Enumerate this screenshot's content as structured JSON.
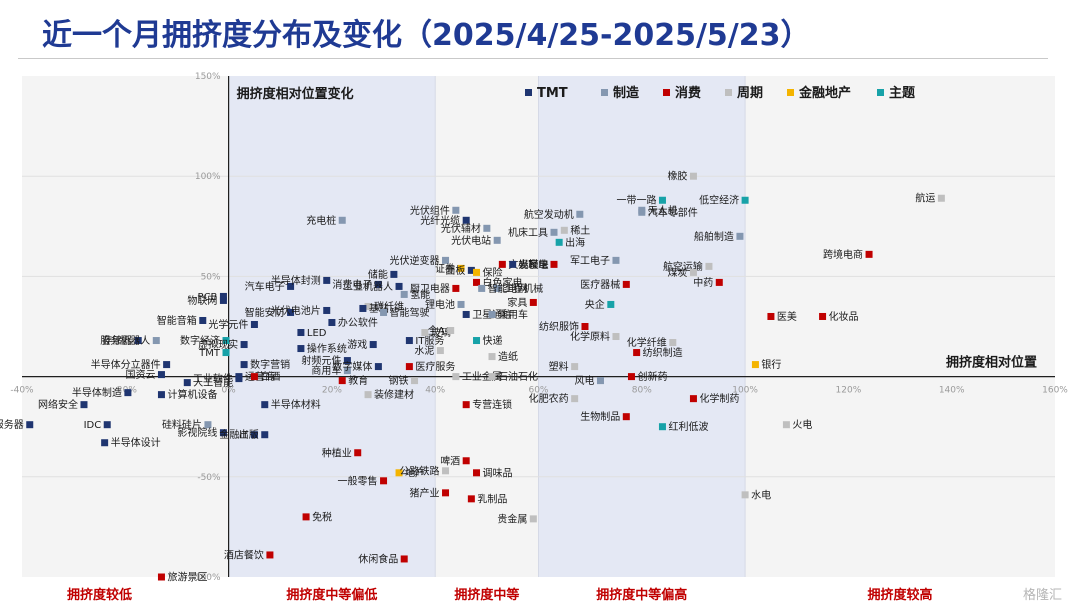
{
  "title": "近一个月拥挤度分布及变化（2025/4/25-2025/5/23）",
  "watermark": "格隆汇",
  "colors": {
    "TMT": "#1f3570",
    "制造": "#8497b0",
    "消费": "#c00000",
    "周期": "#bfbfbf",
    "金融地产": "#f4b400",
    "主题": "#17a2a8"
  },
  "chart_data": {
    "type": "scatter",
    "x_axis_label": "拥挤度相对位置",
    "y_axis_label": "拥挤度相对位置变化",
    "xlim": [
      -0.4,
      1.6
    ],
    "ylim": [
      -1.0,
      1.5
    ],
    "x_ticks": [
      "-40%",
      "-20%",
      "0%",
      "20%",
      "40%",
      "60%",
      "80%",
      "100%",
      "120%",
      "140%",
      "160%"
    ],
    "y_ticks": [
      "150%",
      "100%",
      "50%",
      "-50%",
      "-100%"
    ],
    "legend": [
      "TMT",
      "制造",
      "消费",
      "周期",
      "金融地产",
      "主题"
    ],
    "zones": [
      "拥挤度较低",
      "拥挤度中等偏低",
      "拥挤度中等",
      "拥挤度中等偏高",
      "拥挤度较高"
    ],
    "points": [
      {
        "label": "服务器",
        "x": -0.385,
        "y": -0.24,
        "group": "TMT"
      },
      {
        "label": "网络安全",
        "x": -0.28,
        "y": -0.14,
        "group": "TMT"
      },
      {
        "label": "IDC",
        "x": -0.235,
        "y": -0.24,
        "group": "TMT"
      },
      {
        "label": "半导体设计",
        "x": -0.24,
        "y": -0.33,
        "group": "TMT"
      },
      {
        "label": "半导体制造",
        "x": -0.195,
        "y": -0.08,
        "group": "TMT"
      },
      {
        "label": "计算机设备",
        "x": -0.13,
        "y": -0.09,
        "group": "TMT"
      },
      {
        "label": "半导体分立器件",
        "x": -0.12,
        "y": 0.06,
        "group": "TMT"
      },
      {
        "label": "国资云",
        "x": -0.13,
        "y": 0.01,
        "group": "TMT"
      },
      {
        "label": "存储器",
        "x": -0.175,
        "y": 0.18,
        "group": "TMT"
      },
      {
        "label": "服务机器人",
        "x": -0.14,
        "y": 0.18,
        "group": "制造"
      },
      {
        "label": "智能音箱",
        "x": -0.05,
        "y": 0.28,
        "group": "TMT"
      },
      {
        "label": "物联网",
        "x": -0.01,
        "y": 0.38,
        "group": "TMT"
      },
      {
        "label": "PCB",
        "x": -0.01,
        "y": 0.4,
        "group": "TMT"
      },
      {
        "label": "数字经济",
        "x": -0.005,
        "y": 0.18,
        "group": "主题"
      },
      {
        "label": "TMT",
        "x": -0.005,
        "y": 0.12,
        "group": "主题"
      },
      {
        "label": "人工智能",
        "x": -0.08,
        "y": -0.03,
        "group": "TMT"
      },
      {
        "label": "硅料硅片",
        "x": -0.04,
        "y": -0.24,
        "group": "制造"
      },
      {
        "label": "影视院线",
        "x": -0.01,
        "y": -0.28,
        "group": "TMT"
      },
      {
        "label": "工业软件",
        "x": 0.02,
        "y": -0.01,
        "group": "TMT"
      },
      {
        "label": "金融IT",
        "x": 0.05,
        "y": -0.29,
        "group": "TMT"
      },
      {
        "label": "出版",
        "x": 0.07,
        "y": -0.29,
        "group": "TMT"
      },
      {
        "label": "半导体材料",
        "x": 0.07,
        "y": -0.14,
        "group": "TMT"
      },
      {
        "label": "运营商",
        "x": 0.02,
        "y": 0.0,
        "group": "TMT"
      },
      {
        "label": "白酒",
        "x": 0.05,
        "y": 0.0,
        "group": "消费"
      },
      {
        "label": "数字营销",
        "x": 0.03,
        "y": 0.06,
        "group": "TMT"
      },
      {
        "label": "虚拟现实",
        "x": 0.03,
        "y": 0.16,
        "group": "TMT"
      },
      {
        "label": "光学元件",
        "x": 0.05,
        "y": 0.26,
        "group": "TMT"
      },
      {
        "label": "智能安防",
        "x": 0.12,
        "y": 0.32,
        "group": "TMT"
      },
      {
        "label": "汽车电子",
        "x": 0.12,
        "y": 0.45,
        "group": "TMT"
      },
      {
        "label": "LED",
        "x": 0.14,
        "y": 0.22,
        "group": "TMT"
      },
      {
        "label": "操作系统",
        "x": 0.14,
        "y": 0.14,
        "group": "TMT"
      },
      {
        "label": "射频元件",
        "x": 0.23,
        "y": 0.08,
        "group": "TMT"
      },
      {
        "label": "商用车",
        "x": 0.23,
        "y": 0.03,
        "group": "制造"
      },
      {
        "label": "充电桩",
        "x": 0.22,
        "y": 0.78,
        "group": "制造"
      },
      {
        "label": "半导体封测",
        "x": 0.19,
        "y": 0.48,
        "group": "TMT"
      },
      {
        "label": "光伏电池片",
        "x": 0.19,
        "y": 0.33,
        "group": "TMT"
      },
      {
        "label": "办公软件",
        "x": 0.2,
        "y": 0.27,
        "group": "TMT"
      },
      {
        "label": "消费电子",
        "x": 0.29,
        "y": 0.46,
        "group": "TMT"
      },
      {
        "label": "储能",
        "x": 0.32,
        "y": 0.51,
        "group": "TMT"
      },
      {
        "label": "碳纤维",
        "x": 0.27,
        "y": 0.35,
        "group": "周期"
      },
      {
        "label": "基站",
        "x": 0.26,
        "y": 0.34,
        "group": "TMT"
      },
      {
        "label": "智能驾驶",
        "x": 0.3,
        "y": 0.32,
        "group": "制造"
      },
      {
        "label": "工业机器人",
        "x": 0.33,
        "y": 0.45,
        "group": "TMT"
      },
      {
        "label": "氢能",
        "x": 0.34,
        "y": 0.41,
        "group": "制造"
      },
      {
        "label": "IT服务",
        "x": 0.35,
        "y": 0.18,
        "group": "TMT"
      },
      {
        "label": "玻璃",
        "x": 0.38,
        "y": 0.22,
        "group": "周期"
      },
      {
        "label": "游戏",
        "x": 0.28,
        "y": 0.16,
        "group": "TMT"
      },
      {
        "label": "数字媒体",
        "x": 0.29,
        "y": 0.05,
        "group": "TMT"
      },
      {
        "label": "医疗服务",
        "x": 0.35,
        "y": 0.05,
        "group": "消费"
      },
      {
        "label": "钢铁",
        "x": 0.36,
        "y": -0.02,
        "group": "周期"
      },
      {
        "label": "教育",
        "x": 0.22,
        "y": -0.02,
        "group": "消费"
      },
      {
        "label": "装修建材",
        "x": 0.27,
        "y": -0.09,
        "group": "周期"
      },
      {
        "label": "种植业",
        "x": 0.25,
        "y": -0.38,
        "group": "消费"
      },
      {
        "label": "一般零售",
        "x": 0.3,
        "y": -0.52,
        "group": "消费"
      },
      {
        "label": "地产",
        "x": 0.33,
        "y": -0.48,
        "group": "金融地产"
      },
      {
        "label": "免税",
        "x": 0.15,
        "y": -0.7,
        "group": "消费"
      },
      {
        "label": "酒店餐饮",
        "x": 0.08,
        "y": -0.89,
        "group": "消费"
      },
      {
        "label": "旅游景区",
        "x": -0.13,
        "y": -1.0,
        "group": "消费"
      },
      {
        "label": "休闲食品",
        "x": 0.34,
        "y": -0.91,
        "group": "消费"
      },
      {
        "label": "光伏组件",
        "x": 0.44,
        "y": 0.83,
        "group": "制造"
      },
      {
        "label": "光纤光缆",
        "x": 0.46,
        "y": 0.78,
        "group": "TMT"
      },
      {
        "label": "光伏辅材",
        "x": 0.5,
        "y": 0.74,
        "group": "制造"
      },
      {
        "label": "光伏逆变器",
        "x": 0.42,
        "y": 0.58,
        "group": "制造"
      },
      {
        "label": "光伏电站",
        "x": 0.52,
        "y": 0.68,
        "group": "制造"
      },
      {
        "label": "证券",
        "x": 0.45,
        "y": 0.54,
        "group": "金融地产"
      },
      {
        "label": "面板",
        "x": 0.47,
        "y": 0.53,
        "group": "TMT"
      },
      {
        "label": "保险",
        "x": 0.48,
        "y": 0.52,
        "group": "金融地产"
      },
      {
        "label": "文娱轻工",
        "x": 0.53,
        "y": 0.56,
        "group": "消费"
      },
      {
        "label": "白色家电",
        "x": 0.48,
        "y": 0.47,
        "group": "消费"
      },
      {
        "label": "工程机械",
        "x": 0.52,
        "y": 0.44,
        "group": "制造"
      },
      {
        "label": "光模块",
        "x": 0.55,
        "y": 0.56,
        "group": "TMT"
      },
      {
        "label": "厨卫电器",
        "x": 0.44,
        "y": 0.44,
        "group": "消费"
      },
      {
        "label": "智能电网",
        "x": 0.49,
        "y": 0.44,
        "group": "制造"
      },
      {
        "label": "锂电池",
        "x": 0.45,
        "y": 0.36,
        "group": "制造"
      },
      {
        "label": "卫星通信",
        "x": 0.46,
        "y": 0.31,
        "group": "TMT"
      },
      {
        "label": "乘用车",
        "x": 0.51,
        "y": 0.31,
        "group": "制造"
      },
      {
        "label": "全A",
        "x": 0.43,
        "y": 0.23,
        "group": "周期"
      },
      {
        "label": "快递",
        "x": 0.48,
        "y": 0.18,
        "group": "主题"
      },
      {
        "label": "水泥",
        "x": 0.41,
        "y": 0.13,
        "group": "周期"
      },
      {
        "label": "造纸",
        "x": 0.51,
        "y": 0.1,
        "group": "周期"
      },
      {
        "label": "工业金属",
        "x": 0.44,
        "y": 0.0,
        "group": "周期"
      },
      {
        "label": "石油石化",
        "x": 0.51,
        "y": 0.0,
        "group": "周期"
      },
      {
        "label": "专营连锁",
        "x": 0.46,
        "y": -0.14,
        "group": "消费"
      },
      {
        "label": "啤酒",
        "x": 0.46,
        "y": -0.42,
        "group": "消费"
      },
      {
        "label": "公路铁路",
        "x": 0.42,
        "y": -0.47,
        "group": "周期"
      },
      {
        "label": "调味品",
        "x": 0.48,
        "y": -0.48,
        "group": "消费"
      },
      {
        "label": "猪产业",
        "x": 0.42,
        "y": -0.58,
        "group": "消费"
      },
      {
        "label": "乳制品",
        "x": 0.47,
        "y": -0.61,
        "group": "消费"
      },
      {
        "label": "贵金属",
        "x": 0.59,
        "y": -0.71,
        "group": "周期"
      },
      {
        "label": "机床工具",
        "x": 0.63,
        "y": 0.72,
        "group": "制造"
      },
      {
        "label": "航空发动机",
        "x": 0.68,
        "y": 0.81,
        "group": "制造"
      },
      {
        "label": "稀土",
        "x": 0.65,
        "y": 0.73,
        "group": "周期"
      },
      {
        "label": "出海",
        "x": 0.64,
        "y": 0.67,
        "group": "主题"
      },
      {
        "label": "军工电子",
        "x": 0.75,
        "y": 0.58,
        "group": "制造"
      },
      {
        "label": "小家电",
        "x": 0.63,
        "y": 0.56,
        "group": "消费"
      },
      {
        "label": "家具",
        "x": 0.59,
        "y": 0.37,
        "group": "消费"
      },
      {
        "label": "央企",
        "x": 0.74,
        "y": 0.36,
        "group": "主题"
      },
      {
        "label": "医疗器械",
        "x": 0.77,
        "y": 0.46,
        "group": "消费"
      },
      {
        "label": "纺织服饰",
        "x": 0.69,
        "y": 0.25,
        "group": "消费"
      },
      {
        "label": "化学原料",
        "x": 0.75,
        "y": 0.2,
        "group": "周期"
      },
      {
        "label": "纺织制造",
        "x": 0.79,
        "y": 0.12,
        "group": "消费"
      },
      {
        "label": "化学纤维",
        "x": 0.86,
        "y": 0.17,
        "group": "周期"
      },
      {
        "label": "塑料",
        "x": 0.67,
        "y": 0.05,
        "group": "周期"
      },
      {
        "label": "风电",
        "x": 0.72,
        "y": -0.02,
        "group": "制造"
      },
      {
        "label": "创新药",
        "x": 0.78,
        "y": 0.0,
        "group": "消费"
      },
      {
        "label": "化肥农药",
        "x": 0.67,
        "y": -0.11,
        "group": "周期"
      },
      {
        "label": "生物制品",
        "x": 0.77,
        "y": -0.2,
        "group": "消费"
      },
      {
        "label": "红利低波",
        "x": 0.84,
        "y": -0.25,
        "group": "主题"
      },
      {
        "label": "化学制药",
        "x": 0.9,
        "y": -0.11,
        "group": "消费"
      },
      {
        "label": "橡胶",
        "x": 0.9,
        "y": 1.0,
        "group": "周期"
      },
      {
        "label": "一带一路",
        "x": 0.84,
        "y": 0.88,
        "group": "主题"
      },
      {
        "label": "无人机",
        "x": 0.8,
        "y": 0.83,
        "group": "制造"
      },
      {
        "label": "汽车零部件",
        "x": 0.8,
        "y": 0.82,
        "group": "制造"
      },
      {
        "label": "低空经济",
        "x": 1.0,
        "y": 0.88,
        "group": "主题"
      },
      {
        "label": "船舶制造",
        "x": 0.99,
        "y": 0.7,
        "group": "制造"
      },
      {
        "label": "航空运输",
        "x": 0.93,
        "y": 0.55,
        "group": "周期"
      },
      {
        "label": "煤炭",
        "x": 0.9,
        "y": 0.52,
        "group": "周期"
      },
      {
        "label": "中药",
        "x": 0.95,
        "y": 0.47,
        "group": "消费"
      },
      {
        "label": "医美",
        "x": 1.05,
        "y": 0.3,
        "group": "消费"
      },
      {
        "label": "银行",
        "x": 1.02,
        "y": 0.06,
        "group": "金融地产"
      },
      {
        "label": "化妆品",
        "x": 1.15,
        "y": 0.3,
        "group": "消费"
      },
      {
        "label": "跨境电商",
        "x": 1.24,
        "y": 0.61,
        "group": "消费"
      },
      {
        "label": "航运",
        "x": 1.38,
        "y": 0.89,
        "group": "周期"
      },
      {
        "label": "火电",
        "x": 1.08,
        "y": -0.24,
        "group": "周期"
      },
      {
        "label": "水电",
        "x": 1.0,
        "y": -0.59,
        "group": "周期"
      }
    ]
  }
}
